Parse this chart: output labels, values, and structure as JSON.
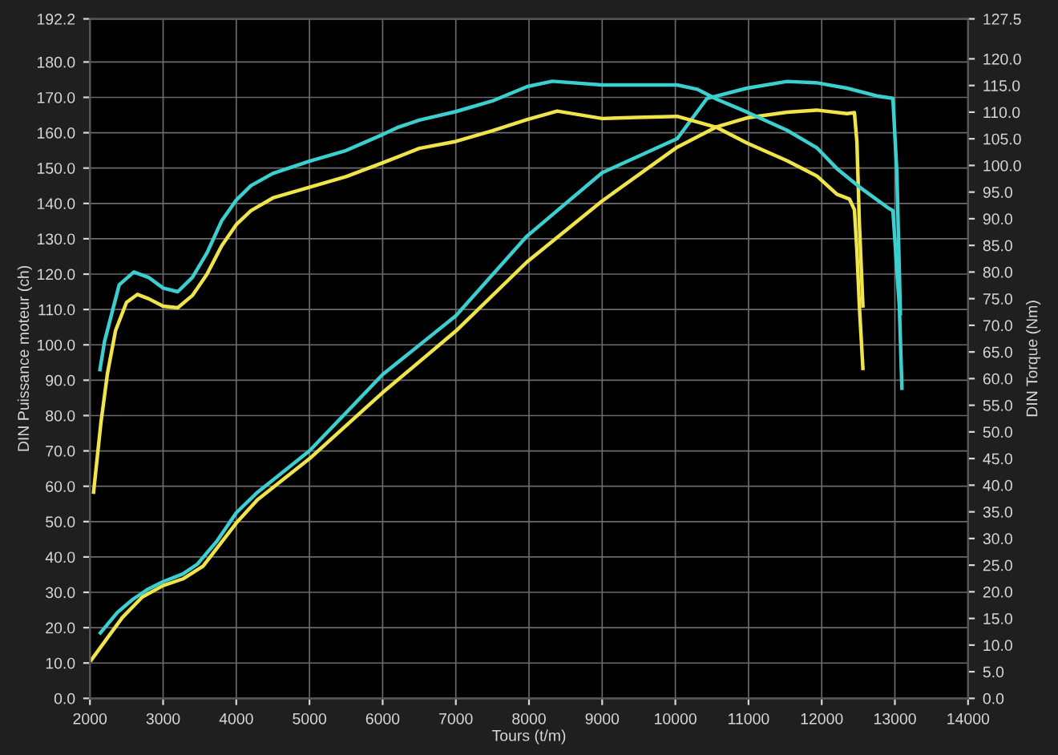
{
  "chart_data": {
    "type": "line",
    "xlabel": "Tours (t/m)",
    "ylabel": "DIN Puissance moteur (ch)",
    "y2label": "DIN Torque (Nm)",
    "xlim": [
      2000,
      14000
    ],
    "xticks": [
      2000,
      3000,
      4000,
      5000,
      6000,
      7000,
      8000,
      9000,
      10000,
      11000,
      12000,
      13000,
      14000
    ],
    "ylim": [
      0,
      192.2
    ],
    "yticks": [
      {
        "value": 0,
        "label": "0.0"
      },
      {
        "value": 10,
        "label": "10.0"
      },
      {
        "value": 20,
        "label": "20.0"
      },
      {
        "value": 30,
        "label": "30.0"
      },
      {
        "value": 40,
        "label": "40.0"
      },
      {
        "value": 50,
        "label": "50.0"
      },
      {
        "value": 60,
        "label": "60.0"
      },
      {
        "value": 70,
        "label": "70.0"
      },
      {
        "value": 80,
        "label": "80.0"
      },
      {
        "value": 90,
        "label": "90.0"
      },
      {
        "value": 100,
        "label": "100.0"
      },
      {
        "value": 110,
        "label": "110.0"
      },
      {
        "value": 120,
        "label": "120.0"
      },
      {
        "value": 130,
        "label": "130.0"
      },
      {
        "value": 140,
        "label": "140.0"
      },
      {
        "value": 150,
        "label": "150.0"
      },
      {
        "value": 160,
        "label": "160.0"
      },
      {
        "value": 170,
        "label": "170.0"
      },
      {
        "value": 180,
        "label": "180.0"
      },
      192.2
    ],
    "y2lim": [
      0,
      127.5
    ],
    "y2ticks": [
      {
        "value": 0,
        "label": "0.0"
      },
      {
        "value": 5,
        "label": "5.0"
      },
      {
        "value": 10,
        "label": "10.0"
      },
      {
        "value": 15,
        "label": "15.0"
      },
      {
        "value": 20,
        "label": "20.0"
      },
      {
        "value": 25,
        "label": "25.0"
      },
      {
        "value": 30,
        "label": "30.0"
      },
      {
        "value": 35,
        "label": "35.0"
      },
      {
        "value": 40,
        "label": "40.0"
      },
      {
        "value": 45,
        "label": "45.0"
      },
      {
        "value": 50,
        "label": "50.0"
      },
      {
        "value": 55,
        "label": "55.0"
      },
      {
        "value": 60,
        "label": "60.0"
      },
      {
        "value": 65,
        "label": "65.0"
      },
      {
        "value": 70,
        "label": "70.0"
      },
      {
        "value": 75,
        "label": "75.0"
      },
      {
        "value": 80,
        "label": "80.0"
      },
      {
        "value": 85,
        "label": "85.0"
      },
      {
        "value": 90,
        "label": "90.0"
      },
      {
        "value": 95,
        "label": "95.0"
      },
      {
        "value": 100,
        "label": "100.0"
      },
      {
        "value": 105,
        "label": "105.0"
      },
      {
        "value": 110,
        "label": "110.0"
      },
      {
        "value": 115,
        "label": "115.0"
      },
      {
        "value": 120,
        "label": "120.0"
      },
      127.5
    ],
    "grid": true,
    "marker": "none",
    "line_style": "solid",
    "series": [
      {
        "color": "#f0e44a",
        "x": [
          2020,
          2239,
          2444,
          2717,
          3000,
          3270,
          3546,
          4000,
          4290,
          5000,
          6000,
          7000,
          7970,
          9000,
          10024,
          10570,
          10980,
          11525,
          11935,
          12345,
          12447,
          12481,
          12515,
          12563
        ],
        "values": [
          10.9,
          17.1,
          22.9,
          28.7,
          31.9,
          33.8,
          37.4,
          49.6,
          56.2,
          67.8,
          86.5,
          103.9,
          123.4,
          140.7,
          155.9,
          161.7,
          164.2,
          165.8,
          166.4,
          165.4,
          165.7,
          157.4,
          134.2,
          111
        ]
      },
      {
        "color": "#3ccfcf",
        "x": [
          2143,
          2375,
          2580,
          2785,
          3000,
          3270,
          3470,
          3740,
          4000,
          4290,
          5000,
          6000,
          7000,
          7970,
          9000,
          10024,
          10433,
          10980,
          11525,
          11935,
          12345,
          12754,
          12973,
          13027,
          13075
        ],
        "values": [
          18.5,
          24.3,
          27.9,
          30.8,
          33,
          35.2,
          38,
          44.6,
          52.5,
          58.3,
          70,
          91.6,
          108.2,
          130.7,
          148.7,
          158.3,
          169.7,
          172.6,
          174.5,
          174.1,
          172.6,
          170.4,
          169.7,
          148.7,
          108.8
        ]
      },
      {
        "color": "#f0e44a",
        "axis": "y2",
        "x": [
          2050,
          2150,
          2240,
          2350,
          2500,
          2650,
          2800,
          3000,
          3200,
          3400,
          3600,
          3800,
          4000,
          4200,
          4500,
          5000,
          5500,
          6000,
          6500,
          7000,
          7500,
          7976,
          8386,
          9000,
          9478,
          10024,
          10570,
          10980,
          11525,
          11935,
          12208,
          12379,
          12447,
          12481,
          12515,
          12563
        ],
        "values": [
          38.7,
          51.7,
          61,
          69,
          74.3,
          75.8,
          75,
          73.6,
          73.3,
          75.6,
          79.6,
          84.9,
          88.9,
          91.5,
          93.9,
          95.9,
          97.9,
          100.5,
          103.2,
          104.5,
          106.5,
          108.6,
          110.2,
          108.8,
          109,
          109.2,
          107.1,
          104.2,
          100.9,
          98,
          94.6,
          93.7,
          91.7,
          84,
          73.5,
          61.9
        ]
      },
      {
        "color": "#3ccfcf",
        "axis": "y2",
        "x": [
          2137,
          2200,
          2400,
          2600,
          2800,
          3000,
          3200,
          3400,
          3600,
          3800,
          4000,
          4200,
          4500,
          5000,
          5500,
          6000,
          6200,
          6500,
          7000,
          7500,
          7976,
          8317,
          9000,
          10024,
          10297,
          10570,
          10980,
          11525,
          11935,
          12208,
          12550,
          12891,
          12973,
          13061,
          13096
        ],
        "values": [
          61.7,
          67,
          77.6,
          80,
          79,
          77,
          76.3,
          79,
          83.6,
          89.6,
          93.5,
          96.2,
          98.5,
          100.8,
          102.8,
          105.8,
          107.1,
          108.5,
          110.1,
          112.1,
          114.8,
          115.8,
          115.1,
          115.1,
          114.3,
          112.4,
          110,
          106.6,
          103.3,
          99.4,
          95.6,
          92.2,
          91.5,
          73.5,
          58.2
        ]
      }
    ]
  }
}
